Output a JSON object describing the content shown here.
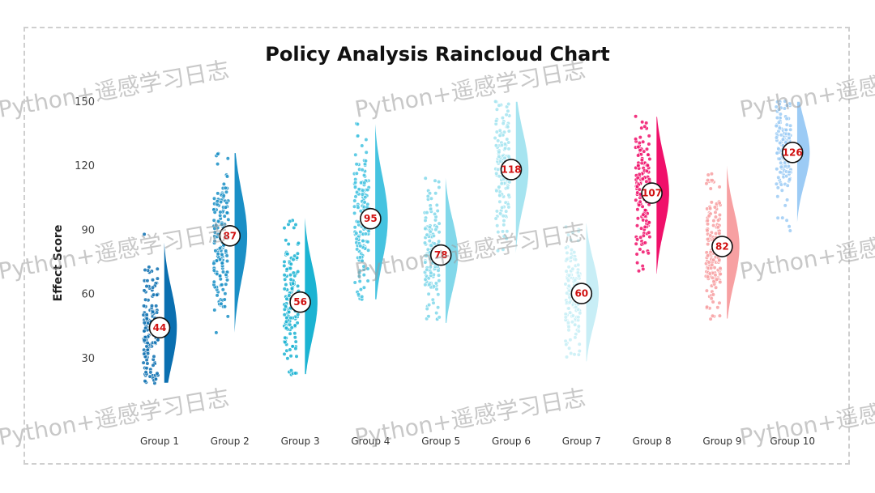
{
  "chart_data": {
    "type": "raincloud",
    "title": "Policy Analysis Raincloud Chart",
    "ylabel": "Effect Score",
    "xlabel": "",
    "ylim": [
      0,
      150
    ],
    "yticks": [
      30,
      60,
      90,
      120,
      150
    ],
    "grid": false,
    "legend": "none",
    "groups": [
      {
        "name": "Group 1",
        "mean": 44,
        "min": 18,
        "max": 94,
        "color": "#0a6fb0"
      },
      {
        "name": "Group 2",
        "mean": 87,
        "min": 40,
        "max": 126,
        "color": "#1a8fc6"
      },
      {
        "name": "Group 3",
        "mean": 56,
        "min": 22,
        "max": 97,
        "color": "#1bb3d2"
      },
      {
        "name": "Group 4",
        "mean": 95,
        "min": 57,
        "max": 141,
        "color": "#45c3e0"
      },
      {
        "name": "Group 5",
        "mean": 78,
        "min": 46,
        "max": 115,
        "color": "#82d8ea"
      },
      {
        "name": "Group 6",
        "mean": 118,
        "min": 76,
        "max": 150,
        "color": "#a6e4f0"
      },
      {
        "name": "Group 7",
        "mean": 60,
        "min": 28,
        "max": 93,
        "color": "#c8eef6"
      },
      {
        "name": "Group 8",
        "mean": 107,
        "min": 69,
        "max": 143,
        "color": "#f0106a"
      },
      {
        "name": "Group 9",
        "mean": 82,
        "min": 48,
        "max": 120,
        "color": "#f7a0a2"
      },
      {
        "name": "Group 10",
        "mean": 126,
        "min": 88,
        "max": 150,
        "color": "#9ccbf5"
      }
    ]
  },
  "watermark": "Python+遥感学习日志"
}
